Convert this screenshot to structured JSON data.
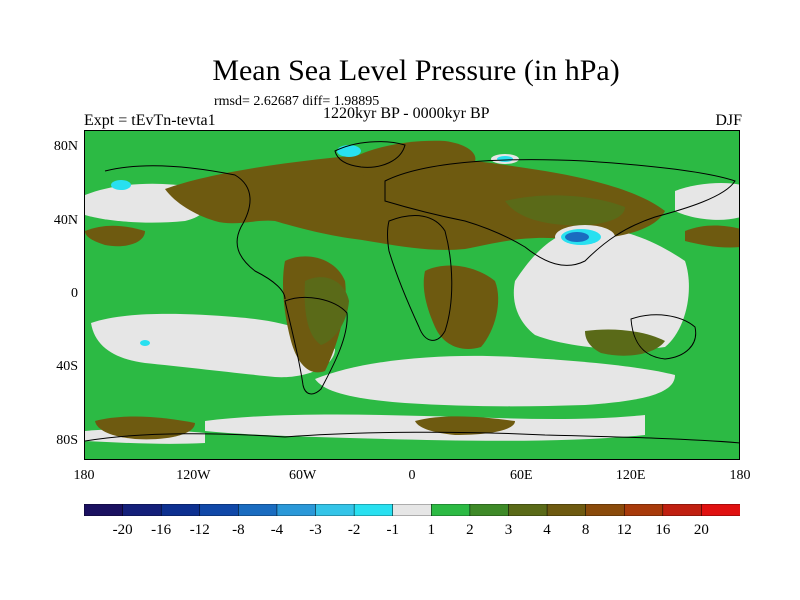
{
  "header": {
    "title": "Mean Sea Level Pressure (in hPa)",
    "stats": "rmsd= 2.62687 diff= 1.98895",
    "experiment": "Expt = tEvTn-tevta1",
    "period": "1220kyr BP - 0000kyr BP",
    "season": "DJF"
  },
  "map": {
    "lat_labels": [
      "80N",
      "40N",
      "0",
      "40S",
      "80S"
    ],
    "lon_labels": [
      "180",
      "120W",
      "60W",
      "0",
      "60E",
      "120E",
      "180"
    ],
    "lat_values": [
      80,
      40,
      0,
      -40,
      -80
    ],
    "lon_values": [
      -180,
      -120,
      -60,
      0,
      60,
      120,
      180
    ],
    "lat_range": [
      -90,
      90
    ],
    "lon_range": [
      -180,
      180
    ]
  },
  "colorbar": {
    "labels": [
      "-20",
      "-16",
      "-12",
      "-8",
      "-4",
      "-3",
      "-2",
      "-1",
      "1",
      "2",
      "3",
      "4",
      "8",
      "12",
      "16",
      "20"
    ],
    "colors": [
      "#1a1060",
      "#14207a",
      "#0d3090",
      "#1048a8",
      "#1a6cc0",
      "#2a98d8",
      "#34c4e8",
      "#28e0f0",
      "#e6e6e6",
      "#2cba44",
      "#3e8a28",
      "#5a6a18",
      "#6e5a10",
      "#8a4a0a",
      "#a83a0a",
      "#c02010",
      "#e01010"
    ]
  },
  "colors": {
    "land_line": "#000000",
    "ocean_base": "#2cba44",
    "white_zone": "#e6e6e6",
    "brown_high": "#6e5a10",
    "olive": "#5a6a18"
  }
}
